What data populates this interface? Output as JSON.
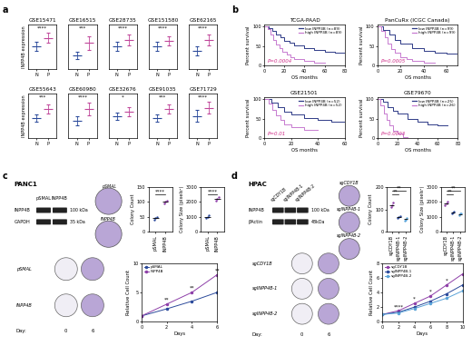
{
  "panel_labels": [
    "a",
    "b",
    "c",
    "d"
  ],
  "chart_data": [
    {
      "type": "dot",
      "title": "GSE15471",
      "ylabel": "INPP4B expression",
      "categories": [
        "N",
        "P"
      ],
      "mean": [
        5,
        7
      ],
      "sd": [
        1,
        1.2
      ],
      "colors": [
        "#2b4a9b",
        "#c0479a"
      ],
      "ylim": [
        0,
        10
      ],
      "tick_labels": "x",
      "annotations": [
        {
          "text": "****"
        }
      ]
    },
    {
      "type": "dot",
      "title": "GSE16515",
      "categories": [
        "N",
        "P"
      ],
      "mean": [
        3,
        5.8
      ],
      "sd": [
        0.8,
        1.6
      ],
      "colors": [
        "#2b4a9b",
        "#c0479a"
      ],
      "ylim": [
        0,
        10
      ],
      "tick_labels": "x",
      "annotations": [
        {
          "text": "***"
        }
      ]
    },
    {
      "type": "dot",
      "title": "GSE28735",
      "categories": [
        "N",
        "P"
      ],
      "mean": [
        5,
        6.5
      ],
      "sd": [
        1,
        1.2
      ],
      "colors": [
        "#2b4a9b",
        "#c0479a"
      ],
      "ylim": [
        0,
        10
      ],
      "tick_labels": "x",
      "annotations": [
        {
          "text": "****"
        }
      ]
    },
    {
      "type": "dot",
      "title": "GSE151580",
      "categories": [
        "N",
        "P"
      ],
      "mean": [
        5,
        6.3
      ],
      "sd": [
        1,
        1
      ],
      "colors": [
        "#2b4a9b",
        "#c0479a"
      ],
      "ylim": [
        0,
        10
      ],
      "tick_labels": "x",
      "annotations": [
        {
          "text": "****"
        }
      ]
    },
    {
      "type": "dot",
      "title": "GSE62165",
      "categories": [
        "N",
        "P"
      ],
      "mean": [
        4,
        6.5
      ],
      "sd": [
        1,
        1.3
      ],
      "colors": [
        "#2b4a9b",
        "#c0479a"
      ],
      "ylim": [
        0,
        10
      ],
      "tick_labels": "x",
      "annotations": [
        {
          "text": "****"
        }
      ]
    },
    {
      "type": "dot",
      "title": "GSE55643",
      "ylabel": "INPP4B expression",
      "categories": [
        "N",
        "P"
      ],
      "mean": [
        4.5,
        6.5
      ],
      "sd": [
        0.8,
        1
      ],
      "colors": [
        "#2b4a9b",
        "#c0479a"
      ],
      "ylim": [
        0,
        10
      ],
      "tick_labels": "x",
      "annotations": [
        {
          "text": "***"
        }
      ]
    },
    {
      "type": "dot",
      "title": "GSE60980",
      "categories": [
        "N",
        "P"
      ],
      "mean": [
        4,
        6.5
      ],
      "sd": [
        1,
        1.4
      ],
      "colors": [
        "#2b4a9b",
        "#c0479a"
      ],
      "ylim": [
        0,
        10
      ],
      "tick_labels": "x",
      "annotations": [
        {
          "text": "****"
        }
      ]
    },
    {
      "type": "dot",
      "title": "GSE32676",
      "categories": [
        "N",
        "P"
      ],
      "mean": [
        5,
        6
      ],
      "sd": [
        0.8,
        1
      ],
      "colors": [
        "#2b4a9b",
        "#c0479a"
      ],
      "ylim": [
        0,
        10
      ],
      "tick_labels": "x",
      "annotations": [
        {
          "text": "*"
        }
      ]
    },
    {
      "type": "dot",
      "title": "GSE91035",
      "categories": [
        "N",
        "P"
      ],
      "mean": [
        4.5,
        6.5
      ],
      "sd": [
        0.8,
        1
      ],
      "colors": [
        "#2b4a9b",
        "#c0479a"
      ],
      "ylim": [
        0,
        10
      ],
      "tick_labels": "x",
      "annotations": [
        {
          "text": "***"
        }
      ]
    },
    {
      "type": "dot",
      "title": "GSE71729",
      "categories": [
        "N",
        "P"
      ],
      "mean": [
        5,
        6.8
      ],
      "sd": [
        1.3,
        1.3
      ],
      "colors": [
        "#2b4a9b",
        "#c0479a"
      ],
      "ylim": [
        0,
        10
      ],
      "tick_labels": "x",
      "annotations": [
        {
          "text": "****"
        }
      ]
    },
    {
      "type": "survival",
      "title": "TCGA-PAAD",
      "xlabel": "OS months",
      "ylabel": "Percent survival",
      "xlim": [
        0,
        80
      ],
      "xticks": [
        0,
        20,
        40,
        60,
        80
      ],
      "ylim": [
        0,
        105
      ],
      "yticks": [
        0,
        50,
        100
      ],
      "legend": "upper right",
      "series": [
        {
          "name": "low INPP4B (n=89)",
          "color": "#2e3a87",
          "x": [
            0,
            4,
            8,
            12,
            16,
            20,
            25,
            30,
            40,
            50,
            60,
            70,
            80
          ],
          "values": [
            100,
            95,
            88,
            80,
            72,
            64,
            58,
            52,
            45,
            40,
            36,
            33,
            33
          ]
        },
        {
          "name": "high INPP4B (n=89)",
          "color": "#c77bd0",
          "x": [
            0,
            3,
            6,
            9,
            12,
            15,
            18,
            22,
            26,
            30,
            40,
            50,
            60
          ],
          "values": [
            100,
            92,
            80,
            66,
            54,
            44,
            36,
            28,
            22,
            18,
            12,
            8,
            8
          ]
        }
      ],
      "annotations": [
        {
          "text": "P=0.0004",
          "color": "#d0308a"
        }
      ]
    },
    {
      "type": "survival",
      "title": "PanCuRx (ICGC Canada)",
      "xlabel": "OS months",
      "ylabel": "Percent survival",
      "xlim": [
        0,
        70
      ],
      "xticks": [
        0,
        20,
        40,
        60
      ],
      "ylim": [
        0,
        105
      ],
      "yticks": [
        0,
        50,
        100
      ],
      "legend": "upper right",
      "series": [
        {
          "name": "low INPP4B (n=99)",
          "color": "#2e3a87",
          "x": [
            0,
            5,
            10,
            15,
            20,
            30,
            40,
            50,
            60,
            70
          ],
          "values": [
            100,
            90,
            78,
            65,
            55,
            45,
            38,
            34,
            30,
            30
          ]
        },
        {
          "name": "high INPP4B (n=99)",
          "color": "#c77bd0",
          "x": [
            0,
            3,
            6,
            9,
            12,
            15,
            20,
            25,
            30,
            40,
            50
          ],
          "values": [
            100,
            88,
            72,
            56,
            42,
            32,
            22,
            16,
            12,
            8,
            8
          ]
        }
      ],
      "annotations": [
        {
          "text": "P=0.0005",
          "color": "#d0308a"
        }
      ]
    },
    {
      "type": "survival",
      "title": "GSE21501",
      "xlabel": "OS months",
      "ylabel": "Percent survival",
      "xlim": [
        0,
        60
      ],
      "xticks": [
        0,
        20,
        40,
        60
      ],
      "ylim": [
        0,
        105
      ],
      "yticks": [
        0,
        50,
        100
      ],
      "legend": "upper right",
      "series": [
        {
          "name": "low INPP4B (n=52)",
          "color": "#2e3a87",
          "x": [
            0,
            5,
            10,
            15,
            20,
            30,
            40,
            50,
            60
          ],
          "values": [
            100,
            90,
            78,
            68,
            60,
            52,
            46,
            42,
            42
          ]
        },
        {
          "name": "high INPP4B (n=52)",
          "color": "#c77bd0",
          "x": [
            0,
            3,
            6,
            9,
            12,
            15,
            20,
            30,
            40
          ],
          "values": [
            100,
            88,
            72,
            58,
            46,
            36,
            28,
            22,
            22
          ]
        }
      ],
      "annotations": [
        {
          "text": "P=0.01",
          "color": "#d0308a"
        }
      ]
    },
    {
      "type": "survival",
      "title": "GSE79670",
      "xlabel": "OS months",
      "ylabel": "Percent survival",
      "xlim": [
        0,
        80
      ],
      "xticks": [
        0,
        20,
        40,
        60,
        80
      ],
      "ylim": [
        0,
        105
      ],
      "yticks": [
        0,
        50,
        100
      ],
      "legend": "upper right",
      "series": [
        {
          "name": "low INPP4B (n=25)",
          "color": "#2e3a87",
          "x": [
            0,
            5,
            10,
            15,
            20,
            30,
            40,
            50,
            60,
            70
          ],
          "values": [
            100,
            92,
            80,
            70,
            62,
            50,
            42,
            36,
            32,
            32
          ]
        },
        {
          "name": "high INPP4B (n=26)",
          "color": "#c77bd0",
          "x": [
            0,
            3,
            6,
            9,
            12,
            15,
            20,
            25,
            30
          ],
          "values": [
            100,
            84,
            64,
            46,
            32,
            20,
            12,
            4,
            4
          ]
        }
      ],
      "annotations": [
        {
          "text": "P=0.0003",
          "color": "#d0308a"
        }
      ]
    },
    {
      "type": "dot",
      "ylabel": "Colony Count",
      "categories": [
        "pSMAL",
        "INPP4B"
      ],
      "points": [
        [
          40,
          45,
          50
        ],
        [
          95,
          100,
          105
        ]
      ],
      "colors": [
        "#2b4a9b",
        "#8e3fa8"
      ],
      "ylim": [
        0,
        150
      ],
      "yticks": [
        0,
        50,
        100,
        150
      ],
      "annotations": [
        {
          "text": "****",
          "between": [
            0,
            1
          ]
        }
      ]
    },
    {
      "type": "dot",
      "ylabel": "Colony Size (pixels²)",
      "categories": [
        "pSMAL",
        "INPP4B"
      ],
      "points": [
        [
          900,
          1000,
          1100
        ],
        [
          2100,
          2200,
          2300
        ]
      ],
      "colors": [
        "#2b4a9b",
        "#8e3fa8"
      ],
      "ylim": [
        0,
        3000
      ],
      "yticks": [
        0,
        1000,
        2000,
        3000
      ],
      "annotations": [
        {
          "text": "****",
          "between": [
            0,
            1
          ]
        }
      ]
    },
    {
      "type": "line",
      "xlabel": "Days",
      "ylabel": "Relative Cell Count",
      "x": [
        0,
        2,
        4,
        6
      ],
      "xlim": [
        0,
        6
      ],
      "xticks": [
        0,
        2,
        4,
        6
      ],
      "ylim": [
        0,
        10
      ],
      "yticks": [
        0,
        5,
        10
      ],
      "legend": "upper left",
      "series": [
        {
          "name": "pSMAL",
          "color": "#2b4a9b",
          "marker": "o",
          "values": [
            1,
            2.2,
            3.5,
            5
          ]
        },
        {
          "name": "INPP4B",
          "color": "#8e3fa8",
          "marker": "o",
          "values": [
            1,
            3,
            5,
            8
          ]
        }
      ],
      "annotations": [
        {
          "x": 2,
          "text": "**"
        },
        {
          "x": 4,
          "text": "**"
        },
        {
          "x": 6,
          "text": "**"
        }
      ]
    },
    {
      "type": "dot",
      "ylabel": "Colony Count",
      "categories": [
        "sgCDY1B",
        "sgINPP4B-1",
        "sgINPP4B-2"
      ],
      "points": [
        [
          110,
          120,
          130
        ],
        [
          60,
          65,
          70
        ],
        [
          50,
          55,
          62
        ]
      ],
      "colors": [
        "#8e3fa8",
        "#2b4a9b",
        "#5aa3d8"
      ],
      "ylim": [
        0,
        200
      ],
      "yticks": [
        0,
        100,
        200
      ],
      "annotations": [
        {
          "text": "**",
          "between": [
            0,
            1
          ]
        },
        {
          "text": "**",
          "between": [
            0,
            2
          ]
        }
      ]
    },
    {
      "type": "dot",
      "ylabel": "Colony Size (pixels²)",
      "categories": [
        "sgCDY1B",
        "sgINPP4B-1",
        "sgINPP4B-2"
      ],
      "points": [
        [
          1800,
          1900,
          2000
        ],
        [
          1200,
          1300,
          1350
        ],
        [
          1100,
          1200,
          1250
        ]
      ],
      "colors": [
        "#8e3fa8",
        "#2b4a9b",
        "#5aa3d8"
      ],
      "ylim": [
        0,
        3000
      ],
      "yticks": [
        0,
        1000,
        2000,
        3000
      ],
      "annotations": [
        {
          "text": "**",
          "between": [
            0,
            1
          ]
        },
        {
          "text": "**",
          "between": [
            0,
            2
          ]
        }
      ]
    },
    {
      "type": "line",
      "xlabel": "Days",
      "ylabel": "Relative Cell Count",
      "x": [
        0,
        2,
        4,
        6,
        8,
        10
      ],
      "xlim": [
        0,
        10
      ],
      "xticks": [
        0,
        2,
        4,
        6,
        8,
        10
      ],
      "ylim": [
        0,
        8
      ],
      "yticks": [
        0,
        2,
        4,
        6,
        8
      ],
      "legend": "upper left",
      "series": [
        {
          "name": "sgCDY1B",
          "color": "#8e3fa8",
          "marker": "o",
          "values": [
            1,
            1.5,
            2.5,
            3.5,
            5,
            6.5
          ]
        },
        {
          "name": "sgINPP4B-1",
          "color": "#2b4a9b",
          "marker": "o",
          "values": [
            1,
            1.3,
            2,
            2.8,
            3.8,
            5
          ]
        },
        {
          "name": "sgINPP4B-2",
          "color": "#5aa3d8",
          "marker": "o",
          "values": [
            1,
            1.2,
            1.8,
            2.5,
            3.2,
            4.2
          ]
        }
      ],
      "annotations": [
        {
          "x": 2,
          "text": "****"
        },
        {
          "x": 4,
          "text": "*"
        },
        {
          "x": 6,
          "text": "*"
        },
        {
          "x": 8,
          "text": "*"
        }
      ]
    }
  ],
  "blots": [
    {
      "title": "PANC1",
      "lanes": [
        "pSMAL",
        "INPP4B"
      ],
      "rows": [
        {
          "name": "INPP4B",
          "size": "100 kDa"
        },
        {
          "name": "GAPDH",
          "size": "35 kDa"
        }
      ]
    },
    {
      "title": "HPAC",
      "lanes": [
        "sgCDY1B",
        "sgINPP4B-1",
        "sgINPP4B-2"
      ],
      "rows": [
        {
          "name": "INPP4B",
          "size": "100 kDa"
        },
        {
          "name": "βActin",
          "size": "48kDa"
        }
      ]
    }
  ],
  "colony_plates": [
    {
      "labels": [
        "pSMAL",
        "INPP4B"
      ]
    },
    {
      "labels": [
        "sgCDY1B",
        "sgINPP4B-1",
        "sgINPP4B-2"
      ]
    }
  ],
  "growth_plates": [
    {
      "rows": [
        "pSMAL",
        "INPP4B"
      ],
      "day_label": "Day:",
      "days": [
        0,
        6
      ]
    },
    {
      "rows": [
        "sgCDY1B",
        "sgINPP4B-1",
        "sgINPP4B-2"
      ],
      "day_label": "Day:",
      "days": [
        0,
        6
      ]
    }
  ]
}
